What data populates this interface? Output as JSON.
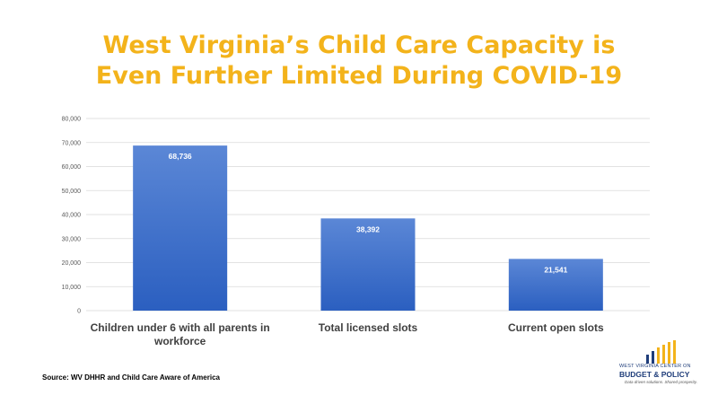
{
  "title_lines": [
    "West Virginia’s Child Care Capacity is",
    "Even Further Limited During COVID-19"
  ],
  "source": "Source: WV DHHR and Child Care Aware of America",
  "logo": {
    "line1": "WEST VIRGINIA CENTER ON",
    "line2": "BUDGET & POLICY",
    "line3": "Data driven solutions. Shared prosperity.",
    "colors": {
      "navy": "#1f3d7a",
      "gold": "#f3b31b"
    }
  },
  "colors": {
    "title": "#f3b31b",
    "bar_top": "#5b87d6",
    "bar_bottom": "#2b5fc0",
    "grid": "#d9d9d9"
  },
  "chart_data": {
    "type": "bar",
    "title": "",
    "xlabel": "",
    "ylabel": "",
    "ylim": [
      0,
      80000
    ],
    "yticks": [
      0,
      10000,
      20000,
      30000,
      40000,
      50000,
      60000,
      70000,
      80000
    ],
    "ytick_labels": [
      "0",
      "10,000",
      "20,000",
      "30,000",
      "40,000",
      "50,000",
      "60,000",
      "70,000",
      "80,000"
    ],
    "grid": true,
    "legend": "none",
    "categories": [
      [
        "Children under 6 with all parents in",
        "workforce"
      ],
      [
        "Total licensed slots"
      ],
      [
        "Current open slots"
      ]
    ],
    "values": [
      68736,
      38392,
      21541
    ],
    "value_labels": [
      "68,736",
      "38,392",
      "21,541"
    ]
  }
}
